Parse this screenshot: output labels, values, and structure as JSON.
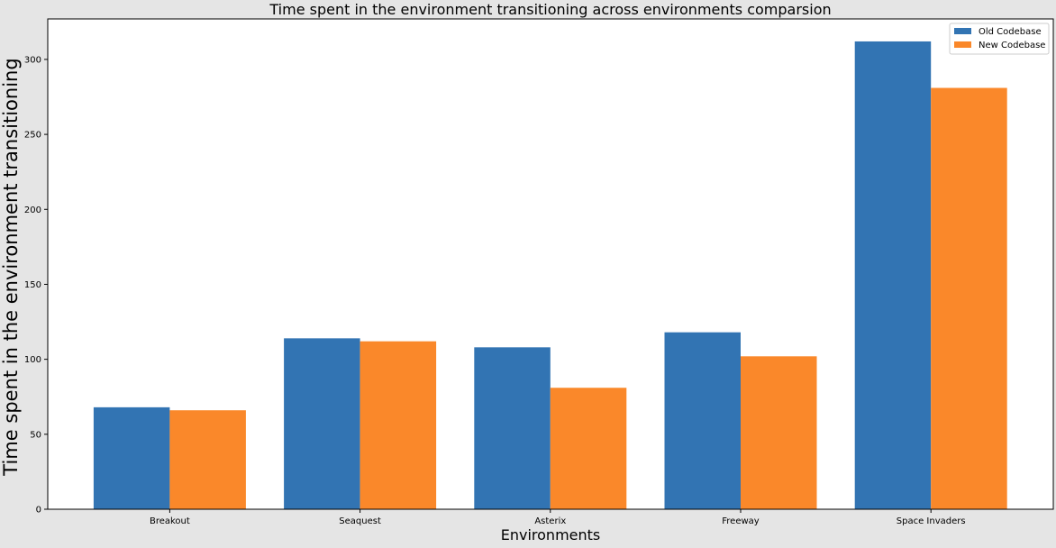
{
  "chart_data": {
    "type": "bar",
    "title": "Time spent in the environment transitioning across environments comparsion",
    "xlabel": "Environments",
    "ylabel": "Time spent in the environment transitioning",
    "categories": [
      "Breakout",
      "Seaquest",
      "Asterix",
      "Freeway",
      "Space Invaders"
    ],
    "series": [
      {
        "name": "Old Codebase",
        "color": "#3274b3",
        "values": [
          68,
          114,
          108,
          118,
          312
        ]
      },
      {
        "name": "New Codebase",
        "color": "#fa882a",
        "values": [
          66,
          112,
          81,
          102,
          281
        ]
      }
    ],
    "ylim": [
      0,
      327
    ],
    "yticks": [
      0,
      50,
      100,
      150,
      200,
      250,
      300
    ],
    "grid": false,
    "legend_position": "top-right"
  }
}
